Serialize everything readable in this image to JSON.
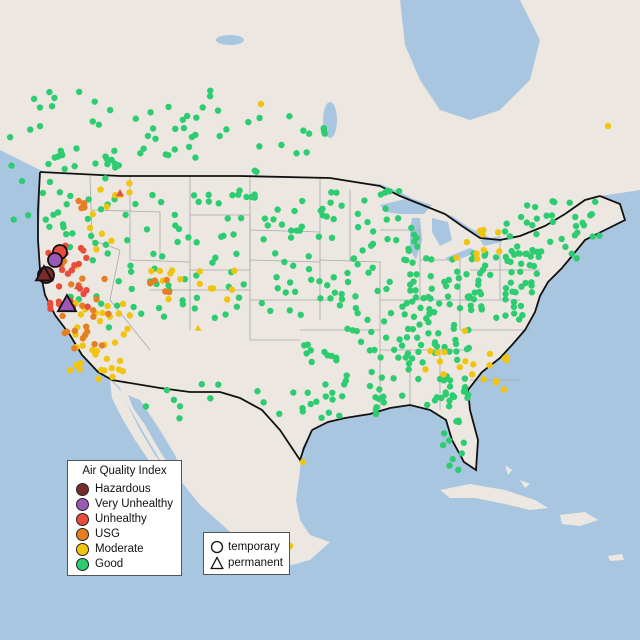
{
  "legend_aqi": {
    "title": "Air Quality Index",
    "items": [
      {
        "label": "Hazardous",
        "color": "#7b2b2b"
      },
      {
        "label": "Very Unhealthy",
        "color": "#9b59b6"
      },
      {
        "label": "Unhealthy",
        "color": "#e74c3c"
      },
      {
        "label": "USG",
        "color": "#e67e22"
      },
      {
        "label": "Moderate",
        "color": "#f1c40f"
      },
      {
        "label": "Good",
        "color": "#2ecc71"
      }
    ]
  },
  "legend_type": {
    "items": [
      {
        "label": "temporary",
        "symbol": "circle-outline-icon"
      },
      {
        "label": "permanent",
        "symbol": "triangle-outline-icon"
      }
    ]
  },
  "colors": {
    "water": "#a9c6e0",
    "land": "#ece8e1",
    "border": "#111111",
    "state_line": "#a8a8a8"
  }
}
